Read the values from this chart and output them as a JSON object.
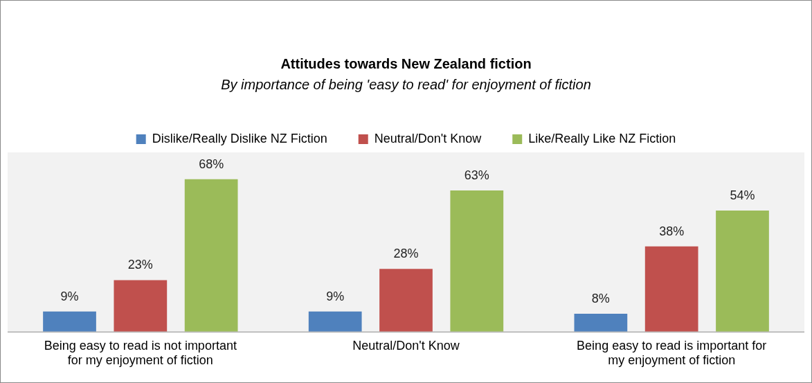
{
  "chart_data": {
    "type": "bar",
    "title": "Attitudes towards New Zealand fiction",
    "subtitle": "By importance of being 'easy to read' for enjoyment of fiction",
    "categories": [
      "Being easy to read is not important for my enjoyment of fiction",
      "Neutral/Don't Know",
      "Being easy to read is important for my enjoyment of fiction"
    ],
    "series": [
      {
        "name": "Dislike/Really Dislike NZ Fiction",
        "color": "#4f81bd",
        "values": [
          9,
          9,
          8
        ],
        "value_labels": [
          "9%",
          "9%",
          "8%"
        ]
      },
      {
        "name": "Neutral/Don't Know",
        "color": "#c0504d",
        "values": [
          23,
          28,
          38
        ],
        "value_labels": [
          "23%",
          "28%",
          "38%"
        ]
      },
      {
        "name": "Like/Really Like NZ Fiction",
        "color": "#9bbb59",
        "values": [
          68,
          63,
          54
        ],
        "value_labels": [
          "68%",
          "63%",
          "54%"
        ]
      }
    ],
    "ylim": [
      0,
      80
    ],
    "tick_labels": "x",
    "grid": false,
    "legend": "top"
  }
}
